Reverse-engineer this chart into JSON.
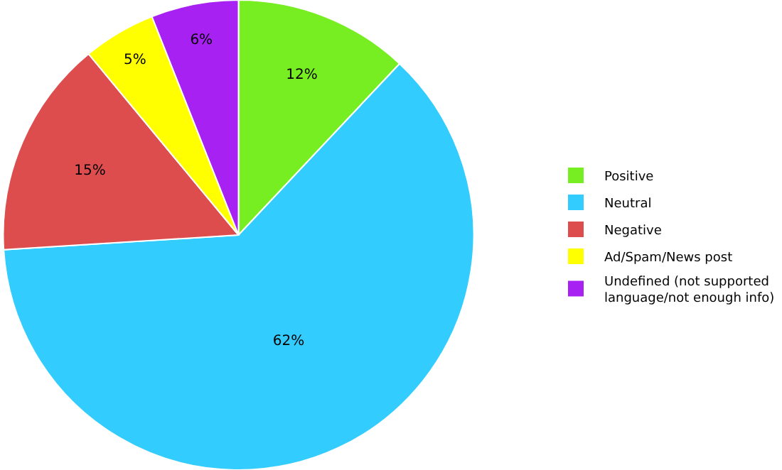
{
  "chart_data": {
    "type": "pie",
    "categories": [
      "Positive",
      "Neutral",
      "Negative",
      "Ad/Spam/News post",
      "Undefined (not supported language/not enough info)"
    ],
    "values": [
      12,
      62,
      15,
      5,
      6
    ],
    "value_labels": [
      "12%",
      "62%",
      "15%",
      "5%",
      "6%"
    ],
    "colors": [
      "#77ee22",
      "#33ccff",
      "#dd4d4d",
      "#ffff00",
      "#a621f2"
    ],
    "legend": "right"
  }
}
